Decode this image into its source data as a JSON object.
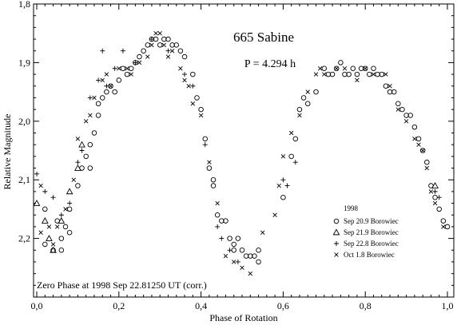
{
  "chart_data": {
    "type": "scatter",
    "title": "665 Sabine",
    "annotation": "P = 4.294 h",
    "footnote": "Zero Phase at 1998 Sep 22.81250 UT (corr.)",
    "xlabel": "Phase of Rotation",
    "ylabel": "Relative Magnitude",
    "xlim": [
      0.0,
      1.0
    ],
    "ylim": [
      1.8,
      2.3
    ],
    "y_inverted": true,
    "x_ticks": [
      "0,0",
      "0,2",
      "0,4",
      "0,6",
      "0,8",
      "1,0"
    ],
    "y_ticks": [
      "1,8",
      "1,9",
      "2,0",
      "2,1",
      "2,2"
    ],
    "grid": false,
    "legend_title": "1998",
    "legend_position": "bottom-right",
    "series": [
      {
        "name": "Sep 20.9 Borowiec",
        "marker": "circle",
        "points": [
          [
            0.02,
            2.15
          ],
          [
            0.02,
            2.21
          ],
          [
            0.04,
            2.22
          ],
          [
            0.05,
            2.17
          ],
          [
            0.06,
            2.2
          ],
          [
            0.06,
            2.22
          ],
          [
            0.07,
            2.18
          ],
          [
            0.08,
            2.15
          ],
          [
            0.08,
            2.19
          ],
          [
            0.1,
            2.11
          ],
          [
            0.11,
            2.08
          ],
          [
            0.12,
            2.06
          ],
          [
            0.13,
            2.04
          ],
          [
            0.13,
            2.08
          ],
          [
            0.14,
            2.02
          ],
          [
            0.15,
            1.99
          ],
          [
            0.15,
            1.97
          ],
          [
            0.16,
            1.96
          ],
          [
            0.17,
            1.95
          ],
          [
            0.18,
            1.94
          ],
          [
            0.19,
            1.95
          ],
          [
            0.2,
            1.93
          ],
          [
            0.21,
            1.91
          ],
          [
            0.22,
            1.92
          ],
          [
            0.23,
            1.91
          ],
          [
            0.24,
            1.9
          ],
          [
            0.25,
            1.89
          ],
          [
            0.26,
            1.88
          ],
          [
            0.27,
            1.87
          ],
          [
            0.28,
            1.86
          ],
          [
            0.29,
            1.86
          ],
          [
            0.3,
            1.87
          ],
          [
            0.31,
            1.86
          ],
          [
            0.32,
            1.86
          ],
          [
            0.33,
            1.87
          ],
          [
            0.34,
            1.87
          ],
          [
            0.35,
            1.88
          ],
          [
            0.36,
            1.89
          ],
          [
            0.38,
            1.92
          ],
          [
            0.39,
            1.96
          ],
          [
            0.4,
            1.98
          ],
          [
            0.41,
            2.03
          ],
          [
            0.42,
            2.08
          ],
          [
            0.43,
            2.1
          ],
          [
            0.43,
            2.11
          ],
          [
            0.44,
            2.16
          ],
          [
            0.45,
            2.17
          ],
          [
            0.46,
            2.17
          ],
          [
            0.47,
            2.2
          ],
          [
            0.48,
            2.21
          ],
          [
            0.48,
            2.22
          ],
          [
            0.49,
            2.2
          ],
          [
            0.5,
            2.22
          ],
          [
            0.51,
            2.23
          ],
          [
            0.52,
            2.23
          ],
          [
            0.53,
            2.23
          ],
          [
            0.54,
            2.22
          ],
          [
            0.54,
            2.24
          ],
          [
            0.6,
            2.13
          ],
          [
            0.62,
            2.06
          ],
          [
            0.63,
            2.03
          ],
          [
            0.64,
            1.98
          ],
          [
            0.65,
            1.96
          ],
          [
            0.66,
            1.97
          ],
          [
            0.68,
            1.95
          ],
          [
            0.7,
            1.91
          ],
          [
            0.71,
            1.92
          ],
          [
            0.72,
            1.92
          ],
          [
            0.73,
            1.91
          ],
          [
            0.74,
            1.9
          ],
          [
            0.75,
            1.92
          ],
          [
            0.76,
            1.92
          ],
          [
            0.77,
            1.91
          ],
          [
            0.78,
            1.92
          ],
          [
            0.79,
            1.91
          ],
          [
            0.8,
            1.91
          ],
          [
            0.81,
            1.92
          ],
          [
            0.82,
            1.91
          ],
          [
            0.83,
            1.92
          ],
          [
            0.84,
            1.92
          ],
          [
            0.85,
            1.94
          ],
          [
            0.86,
            1.95
          ],
          [
            0.87,
            1.95
          ],
          [
            0.88,
            1.97
          ],
          [
            0.89,
            1.98
          ],
          [
            0.9,
            1.99
          ],
          [
            0.91,
            1.99
          ],
          [
            0.92,
            2.01
          ],
          [
            0.93,
            2.03
          ],
          [
            0.94,
            2.05
          ],
          [
            0.95,
            2.07
          ],
          [
            0.96,
            2.11
          ],
          [
            0.97,
            2.13
          ],
          [
            0.98,
            2.15
          ],
          [
            0.99,
            2.17
          ],
          [
            1.0,
            2.18
          ]
        ]
      },
      {
        "name": "Sep 21.9 Borowiec",
        "marker": "triangle",
        "points": [
          [
            0.0,
            2.14
          ],
          [
            0.02,
            2.17
          ],
          [
            0.03,
            2.2
          ],
          [
            0.04,
            2.22
          ],
          [
            0.06,
            2.17
          ],
          [
            0.08,
            2.12
          ],
          [
            0.1,
            2.08
          ],
          [
            0.11,
            2.04
          ],
          [
            0.97,
            2.11
          ]
        ]
      },
      {
        "name": "Sep 22.8 Borowiec",
        "marker": "plus",
        "points": [
          [
            0.0,
            2.09
          ],
          [
            0.02,
            2.12
          ],
          [
            0.04,
            2.13
          ],
          [
            0.06,
            2.16
          ],
          [
            0.08,
            2.14
          ],
          [
            0.1,
            2.07
          ],
          [
            0.11,
            2.05
          ],
          [
            0.13,
            1.96
          ],
          [
            0.15,
            1.93
          ],
          [
            0.16,
            1.88
          ],
          [
            0.17,
            1.94
          ],
          [
            0.19,
            1.91
          ],
          [
            0.21,
            1.88
          ],
          [
            0.24,
            1.9
          ],
          [
            0.28,
            1.86
          ],
          [
            0.32,
            1.88
          ],
          [
            0.36,
            1.92
          ],
          [
            0.38,
            1.94
          ],
          [
            0.41,
            2.04
          ],
          [
            0.44,
            2.18
          ],
          [
            0.45,
            2.2
          ],
          [
            0.47,
            2.22
          ],
          [
            0.49,
            2.24
          ],
          [
            0.6,
            2.1
          ],
          [
            0.61,
            2.11
          ],
          [
            0.63,
            2.07
          ],
          [
            0.97,
            2.12
          ],
          [
            0.98,
            2.13
          ]
        ]
      },
      {
        "name": "Oct 1.8 Borowiec",
        "marker": "x",
        "points": [
          [
            0.01,
            2.11
          ],
          [
            0.01,
            2.19
          ],
          [
            0.03,
            2.18
          ],
          [
            0.04,
            2.21
          ],
          [
            0.05,
            2.18
          ],
          [
            0.07,
            2.15
          ],
          [
            0.09,
            2.1
          ],
          [
            0.1,
            2.03
          ],
          [
            0.12,
            2.0
          ],
          [
            0.13,
            1.99
          ],
          [
            0.14,
            1.96
          ],
          [
            0.16,
            1.93
          ],
          [
            0.17,
            1.92
          ],
          [
            0.18,
            1.94
          ],
          [
            0.2,
            1.91
          ],
          [
            0.22,
            1.91
          ],
          [
            0.23,
            1.92
          ],
          [
            0.25,
            1.9
          ],
          [
            0.27,
            1.89
          ],
          [
            0.28,
            1.87
          ],
          [
            0.29,
            1.85
          ],
          [
            0.3,
            1.85
          ],
          [
            0.31,
            1.87
          ],
          [
            0.32,
            1.89
          ],
          [
            0.33,
            1.88
          ],
          [
            0.35,
            1.91
          ],
          [
            0.36,
            1.93
          ],
          [
            0.37,
            1.94
          ],
          [
            0.38,
            1.97
          ],
          [
            0.4,
            1.99
          ],
          [
            0.42,
            2.07
          ],
          [
            0.44,
            2.14
          ],
          [
            0.46,
            2.23
          ],
          [
            0.48,
            2.24
          ],
          [
            0.5,
            2.25
          ],
          [
            0.52,
            2.26
          ],
          [
            0.55,
            2.19
          ],
          [
            0.58,
            2.16
          ],
          [
            0.59,
            2.11
          ],
          [
            0.6,
            2.06
          ],
          [
            0.62,
            2.02
          ],
          [
            0.64,
            1.99
          ],
          [
            0.66,
            1.95
          ],
          [
            0.68,
            1.92
          ],
          [
            0.69,
            1.91
          ],
          [
            0.7,
            1.92
          ],
          [
            0.73,
            1.91
          ],
          [
            0.75,
            1.91
          ],
          [
            0.78,
            1.93
          ],
          [
            0.8,
            1.91
          ],
          [
            0.82,
            1.92
          ],
          [
            0.85,
            1.92
          ],
          [
            0.86,
            1.94
          ],
          [
            0.88,
            1.98
          ],
          [
            0.9,
            2.0
          ],
          [
            0.92,
            2.03
          ],
          [
            0.93,
            2.04
          ],
          [
            0.94,
            2.05
          ],
          [
            0.95,
            2.08
          ],
          [
            0.96,
            2.12
          ],
          [
            0.97,
            2.14
          ],
          [
            0.99,
            2.18
          ]
        ]
      }
    ]
  }
}
